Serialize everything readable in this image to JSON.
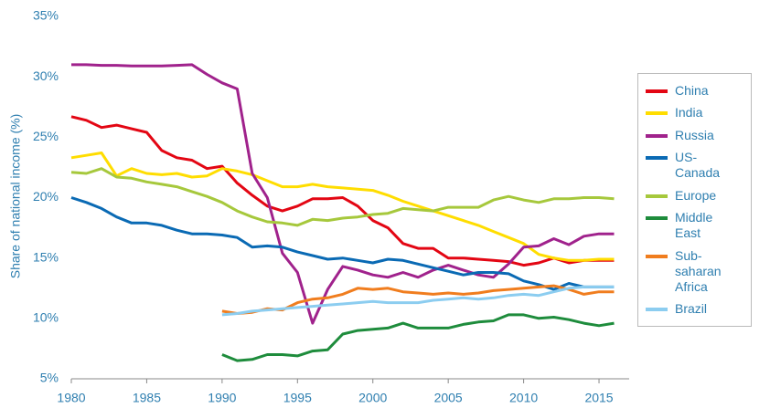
{
  "chart_data": {
    "type": "line",
    "y_label": "Share of national income (%)",
    "x": [
      1980,
      1981,
      1982,
      1983,
      1984,
      1985,
      1986,
      1987,
      1988,
      1989,
      1990,
      1991,
      1992,
      1993,
      1994,
      1995,
      1996,
      1997,
      1998,
      1999,
      2000,
      2001,
      2002,
      2003,
      2004,
      2005,
      2006,
      2007,
      2008,
      2009,
      2010,
      2011,
      2012,
      2013,
      2014,
      2015,
      2016
    ],
    "xlim": [
      1980,
      2017
    ],
    "xticks": [
      1980,
      1985,
      1990,
      1995,
      2000,
      2005,
      2010,
      2015
    ],
    "ylim": [
      5,
      35
    ],
    "yticks": [
      {
        "value": 5,
        "label": "5%"
      },
      {
        "value": 10,
        "label": "10%"
      },
      {
        "value": 15,
        "label": "15%"
      },
      {
        "value": 20,
        "label": "20%"
      },
      {
        "value": 25,
        "label": "25%"
      },
      {
        "value": 30,
        "label": "30%"
      },
      {
        "value": 35,
        "label": "35%"
      }
    ],
    "grid": false,
    "legend": "right",
    "series": [
      {
        "name": "China",
        "color": "#e30613",
        "values": [
          26.7,
          26.4,
          25.8,
          26.0,
          25.7,
          25.4,
          23.9,
          23.3,
          23.1,
          22.4,
          22.6,
          21.2,
          20.2,
          19.3,
          18.9,
          19.3,
          19.9,
          19.9,
          20.0,
          19.3,
          18.1,
          17.5,
          16.2,
          15.8,
          15.8,
          15.0,
          15.0,
          14.9,
          14.8,
          14.7,
          14.4,
          14.6,
          15.0,
          14.6,
          14.8,
          14.8,
          14.8
        ]
      },
      {
        "name": "India",
        "color": "#ffdd00",
        "values": [
          23.3,
          23.5,
          23.7,
          21.8,
          22.4,
          22.0,
          21.9,
          22.0,
          21.7,
          21.8,
          22.4,
          22.2,
          21.9,
          21.4,
          20.9,
          20.9,
          21.1,
          20.9,
          20.8,
          20.7,
          20.6,
          20.2,
          19.7,
          19.3,
          18.9,
          18.5,
          18.1,
          17.7,
          17.2,
          16.7,
          16.2,
          15.3,
          15.0,
          14.8,
          14.8,
          14.9,
          14.9
        ]
      },
      {
        "name": "Russia",
        "color": "#a0228c",
        "values": [
          31.0,
          31.0,
          30.95,
          30.95,
          30.9,
          30.9,
          30.9,
          30.95,
          31.0,
          30.2,
          29.5,
          29.0,
          22.0,
          20.0,
          15.4,
          13.8,
          9.6,
          12.4,
          14.3,
          14.0,
          13.6,
          13.4,
          13.8,
          13.4,
          14.0,
          14.4,
          14.0,
          13.6,
          13.4,
          14.5,
          15.9,
          16.0,
          16.6,
          16.1,
          16.8,
          17.0,
          17.0
        ]
      },
      {
        "name": "US-Canada",
        "color": "#0a6ab4",
        "values": [
          20.0,
          19.6,
          19.1,
          18.4,
          17.9,
          17.9,
          17.7,
          17.3,
          17.0,
          17.0,
          16.9,
          16.7,
          15.9,
          16.0,
          15.9,
          15.5,
          15.2,
          14.9,
          15.0,
          14.8,
          14.6,
          14.9,
          14.8,
          14.5,
          14.2,
          13.9,
          13.6,
          13.8,
          13.8,
          13.7,
          13.1,
          12.8,
          12.4,
          12.9,
          12.6,
          12.6,
          12.6
        ]
      },
      {
        "name": "Europe",
        "color": "#a6c83c",
        "values": [
          22.1,
          22.0,
          22.4,
          21.7,
          21.6,
          21.3,
          21.1,
          20.9,
          20.5,
          20.1,
          19.6,
          18.9,
          18.4,
          18.0,
          17.9,
          17.7,
          18.2,
          18.1,
          18.3,
          18.4,
          18.6,
          18.7,
          19.1,
          19.0,
          18.9,
          19.2,
          19.2,
          19.2,
          19.8,
          20.1,
          19.8,
          19.6,
          19.9,
          19.9,
          20.0,
          20.0,
          19.9
        ]
      },
      {
        "name": "Middle East",
        "color": "#1e8c3c",
        "values": [
          null,
          null,
          null,
          null,
          null,
          null,
          null,
          null,
          null,
          null,
          7.0,
          6.5,
          6.6,
          7.0,
          7.0,
          6.9,
          7.3,
          7.4,
          8.7,
          9.0,
          9.1,
          9.2,
          9.6,
          9.2,
          9.2,
          9.2,
          9.5,
          9.7,
          9.8,
          10.3,
          10.3,
          10.0,
          10.1,
          9.9,
          9.6,
          9.4,
          9.6
        ]
      },
      {
        "name": "Sub-saharan Africa",
        "color": "#f07d1e",
        "values": [
          null,
          null,
          null,
          null,
          null,
          null,
          null,
          null,
          null,
          null,
          10.6,
          10.4,
          10.5,
          10.8,
          10.7,
          11.3,
          11.6,
          11.7,
          12.0,
          12.5,
          12.4,
          12.5,
          12.2,
          12.1,
          12.0,
          12.1,
          12.0,
          12.1,
          12.3,
          12.4,
          12.5,
          12.6,
          12.7,
          12.4,
          12.0,
          12.2,
          12.2
        ]
      },
      {
        "name": "Brazil",
        "color": "#8ccdf0",
        "values": [
          null,
          null,
          null,
          null,
          null,
          null,
          null,
          null,
          null,
          null,
          10.3,
          10.4,
          10.6,
          10.7,
          10.8,
          10.9,
          11.0,
          11.1,
          11.2,
          11.3,
          11.4,
          11.3,
          11.3,
          11.3,
          11.5,
          11.6,
          11.7,
          11.6,
          11.7,
          11.9,
          12.0,
          11.9,
          12.2,
          12.5,
          12.6,
          12.6,
          12.6
        ]
      }
    ]
  }
}
